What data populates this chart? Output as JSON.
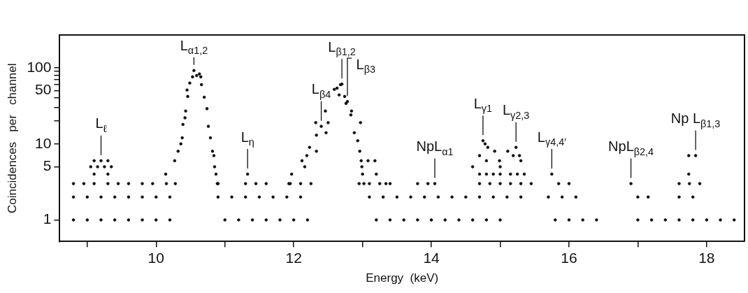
{
  "chart_data": {
    "type": "scatter",
    "xlabel": "Energy  (keV)",
    "ylabel": "Coincidences   per   channel",
    "log": "y",
    "grid": false,
    "legend": false,
    "marker": "circle",
    "xlim": [
      8.6,
      18.55
    ],
    "xticks": [
      {
        "value": 9,
        "label": null
      },
      10,
      {
        "value": 11,
        "label": null
      },
      12,
      {
        "value": 13,
        "label": null
      },
      14,
      {
        "value": 15,
        "label": null
      },
      16,
      {
        "value": 17,
        "label": null
      },
      18
    ],
    "ylim": [
      0.52,
      270
    ],
    "yticks": [
      1,
      5,
      10,
      {
        "value": 20,
        "label": null
      },
      {
        "value": 30,
        "label": null
      },
      {
        "value": 40,
        "label": null
      },
      50,
      {
        "value": 60,
        "label": null
      },
      {
        "value": 70,
        "label": null
      },
      {
        "value": 80,
        "label": null
      },
      {
        "value": 90,
        "label": null
      },
      100
    ],
    "series": [
      {
        "color": "#111111",
        "x": [
          8.8,
          9.0,
          9.2,
          9.4,
          9.6,
          9.8,
          10.0,
          10.2,
          11.0,
          11.2,
          11.4,
          11.6,
          11.8,
          12.0,
          12.2,
          13.2,
          13.4,
          13.6,
          13.8,
          14.0,
          14.2,
          14.4,
          14.6,
          14.8,
          15.0,
          15.8,
          16.0,
          16.2,
          16.4,
          17.0,
          17.2,
          17.4,
          17.6,
          17.8,
          18.0,
          18.2,
          18.4,
          8.8,
          9.0,
          9.2,
          9.4,
          9.6,
          9.8,
          10.0,
          10.2,
          10.9,
          11.1,
          11.3,
          11.5,
          11.7,
          11.9,
          12.1,
          13.1,
          13.3,
          13.5,
          13.7,
          13.9,
          14.1,
          14.3,
          14.5,
          14.7,
          14.9,
          15.1,
          15.3,
          15.7,
          15.9,
          16.1,
          17.0,
          17.15,
          17.6,
          17.8,
          8.8,
          8.95,
          9.1,
          9.3,
          9.45,
          9.6,
          9.8,
          9.95,
          10.15,
          10.28,
          10.9,
          11.3,
          11.45,
          11.6,
          11.95,
          12.1,
          12.25,
          12.95,
          13.1,
          13.25,
          13.4,
          13.8,
          13.95,
          14.05,
          14.7,
          14.85,
          15.0,
          15.15,
          15.3,
          15.45,
          15.85,
          16.0,
          16.9,
          17.6,
          17.75,
          17.9,
          9.1,
          9.3,
          11.33,
          14.7,
          14.8,
          14.9,
          15.0,
          15.15,
          15.25,
          15.35,
          15.75,
          17.74,
          9.05,
          9.15,
          9.25,
          9.35,
          9.1,
          9.2,
          9.3,
          10.14,
          10.27,
          10.32,
          10.36,
          10.38,
          10.39,
          10.42,
          10.43,
          10.46,
          10.45,
          10.49,
          10.53,
          10.55,
          10.59,
          10.63,
          10.65,
          10.66,
          10.7,
          10.74,
          10.76,
          10.79,
          10.82,
          10.84,
          10.85,
          10.87,
          10.89,
          12.68,
          12.59,
          12.46,
          12.84,
          12.78,
          12.97,
          12.5,
          12.32,
          12.4,
          12.33,
          12.47,
          12.23,
          12.33,
          12.19,
          12.12,
          12.16,
          11.97,
          11.93,
          12.88,
          12.93,
          12.96,
          12.98,
          12.99,
          13.08,
          13.18,
          13.0,
          13.2,
          13.02,
          13.34,
          12.7,
          12.63,
          12.66,
          12.74,
          12.76,
          12.83,
          14.75,
          14.78,
          14.82,
          14.92,
          14.7,
          14.8,
          15.11,
          15.23,
          15.19,
          15.28,
          14.99,
          15.3,
          15.0,
          14.6,
          17.74,
          17.84
        ],
        "values": [
          1,
          1,
          1,
          1,
          1,
          1,
          1,
          1,
          1,
          1,
          1,
          1,
          1,
          1,
          1,
          1,
          1,
          1,
          1,
          1,
          1,
          1,
          1,
          1,
          1,
          1,
          1,
          1,
          1,
          1,
          1,
          1,
          1,
          1,
          1,
          1,
          1,
          2,
          2,
          2,
          2,
          2,
          2,
          2,
          2,
          2,
          2,
          2,
          2,
          2,
          2,
          2,
          2,
          2,
          2,
          2,
          2,
          2,
          2,
          2,
          2,
          2,
          2,
          2,
          2,
          2,
          2,
          2,
          2,
          2,
          2,
          3,
          3,
          3,
          3,
          3,
          3,
          3,
          3,
          3,
          3,
          3,
          3,
          3,
          3,
          3,
          3,
          3,
          3,
          3,
          3,
          3,
          3,
          3,
          3,
          3,
          3,
          3,
          3,
          3,
          3,
          3,
          3,
          3,
          3,
          3,
          3,
          4,
          4,
          4,
          4,
          4,
          4,
          4,
          4,
          4,
          4,
          4,
          4,
          5,
          5,
          5,
          5,
          6,
          6,
          6,
          4,
          6,
          8,
          10,
          12,
          18,
          22,
          27,
          42,
          51,
          63,
          76,
          92,
          79,
          83,
          76,
          60,
          41,
          29,
          17,
          12,
          8,
          7,
          5,
          4,
          3,
          60,
          52,
          27,
          27,
          36,
          19,
          19,
          19,
          17,
          13,
          14,
          9,
          8,
          7,
          6,
          5,
          4,
          3,
          14,
          11,
          8,
          6,
          5,
          6,
          6,
          4,
          4,
          3,
          3,
          61,
          54,
          44,
          42,
          34,
          24,
          11,
          10,
          9,
          8,
          7,
          6,
          8,
          9,
          7,
          7,
          6,
          6,
          5,
          5,
          7,
          7
        ]
      }
    ],
    "annotations": [
      {
        "text": "L$_{ℓ}$",
        "x": 9.2,
        "y": 6
      },
      {
        "text": "L$_{α1,2}$",
        "x": 10.55,
        "y": 92
      },
      {
        "text": "L$_{β1,2}$",
        "x": 12.7,
        "y": 61
      },
      {
        "text": "L$_{β3}$",
        "x": 12.78,
        "y": 36
      },
      {
        "text": "L$_{β4}$",
        "x": 12.4,
        "y": 17
      },
      {
        "text": "L$_{η}$",
        "x": 11.33,
        "y": 4
      },
      {
        "text": "NpL$_{α1}$",
        "x": 14.05,
        "y": 3
      },
      {
        "text": "L$_{γ1}$",
        "x": 14.75,
        "y": 11
      },
      {
        "text": "L$_{γ2,3}$",
        "x": 15.23,
        "y": 9
      },
      {
        "text": "L$_{γ4,4′}$",
        "x": 15.75,
        "y": 4
      },
      {
        "text": "Np L$_{β1,3}$",
        "x": 17.84,
        "y": 7
      },
      {
        "text": "NpL$_{β2,4}$",
        "x": 16.9,
        "y": 3
      }
    ]
  }
}
